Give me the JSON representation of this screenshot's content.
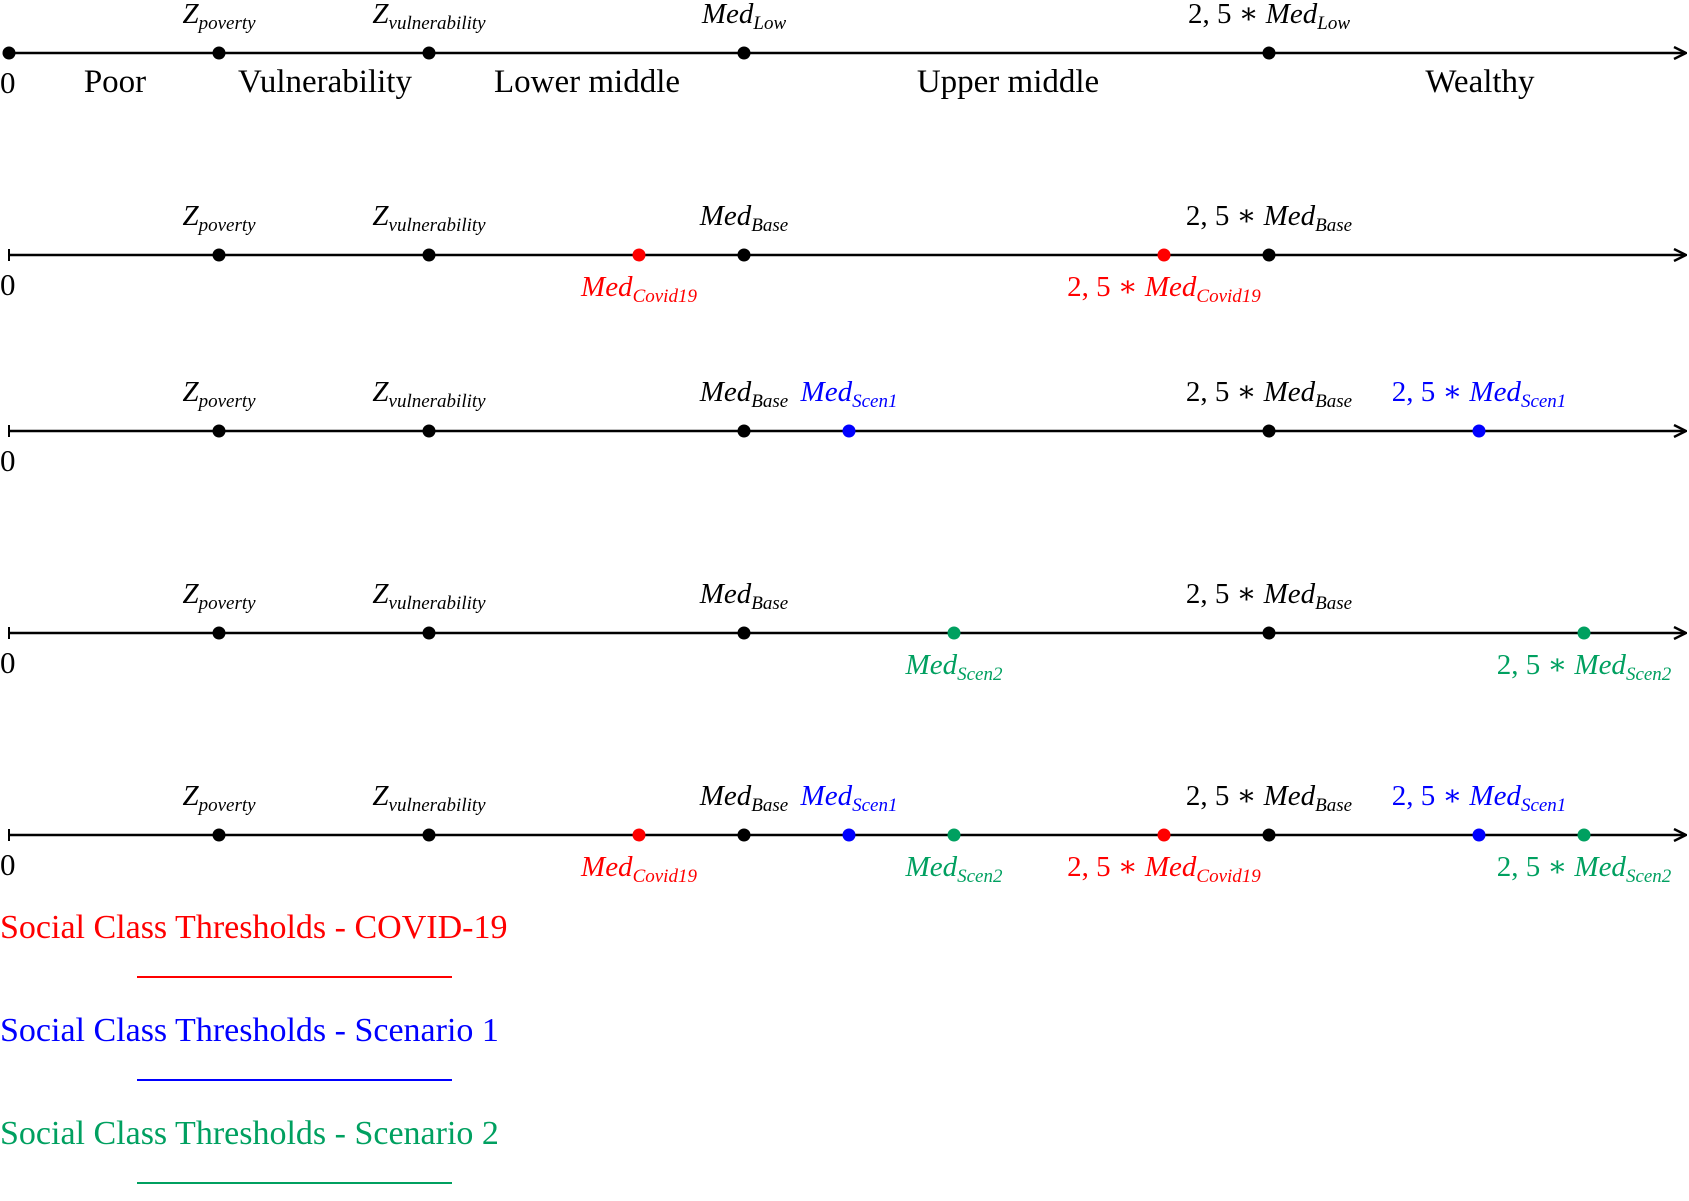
{
  "colors": {
    "axis": "#000000",
    "base": "#000000",
    "covid": "#ff0000",
    "scen1": "#0000ff",
    "scen2": "#00a060"
  },
  "axes": [
    {
      "zero_label": "0",
      "classes": [
        "Poor",
        "Vulnerability",
        "Lower middle",
        "Upper middle",
        "Wealthy"
      ],
      "points": [
        {
          "pos": 0,
          "color": "base",
          "label": null
        },
        {
          "pos": 1,
          "color": "base",
          "label": {
            "main": "Z",
            "sub": "poverty",
            "above": true
          }
        },
        {
          "pos": 2,
          "color": "base",
          "label": {
            "main": "Z",
            "sub": "vulnerability",
            "above": true
          }
        },
        {
          "pos": 3.5,
          "color": "base",
          "label": {
            "main": "Med",
            "sub": "Low",
            "above": true
          }
        },
        {
          "pos": 6,
          "color": "base",
          "label": {
            "prefix": "2, 5 * ",
            "main": "Med",
            "sub": "Low",
            "above": true
          }
        }
      ]
    },
    {
      "zero_label": "0",
      "points": [
        {
          "pos": 1,
          "color": "base",
          "label": {
            "main": "Z",
            "sub": "poverty",
            "above": true
          }
        },
        {
          "pos": 2,
          "color": "base",
          "label": {
            "main": "Z",
            "sub": "vulnerability",
            "above": true
          }
        },
        {
          "pos": 3,
          "color": "covid",
          "label": {
            "main": "Med",
            "sub": "Covid19",
            "above": false
          }
        },
        {
          "pos": 3.5,
          "color": "base",
          "label": {
            "main": "Med",
            "sub": "Base",
            "above": true
          }
        },
        {
          "pos": 5.5,
          "color": "covid",
          "label": {
            "prefix": "2, 5 * ",
            "main": "Med",
            "sub": "Covid19",
            "above": false
          }
        },
        {
          "pos": 6,
          "color": "base",
          "label": {
            "prefix": "2, 5 * ",
            "main": "Med",
            "sub": "Base",
            "above": true
          }
        }
      ]
    },
    {
      "zero_label": "0",
      "points": [
        {
          "pos": 1,
          "color": "base",
          "label": {
            "main": "Z",
            "sub": "poverty",
            "above": true
          }
        },
        {
          "pos": 2,
          "color": "base",
          "label": {
            "main": "Z",
            "sub": "vulnerability",
            "above": true
          }
        },
        {
          "pos": 3.5,
          "color": "base",
          "label": {
            "main": "Med",
            "sub": "Base",
            "above": true
          }
        },
        {
          "pos": 4,
          "color": "scen1",
          "label": {
            "main": "Med",
            "sub": "Scen1",
            "above": true
          }
        },
        {
          "pos": 6,
          "color": "base",
          "label": {
            "prefix": "2, 5 * ",
            "main": "Med",
            "sub": "Base",
            "above": true
          }
        },
        {
          "pos": 7,
          "color": "scen1",
          "label": {
            "prefix": "2, 5 * ",
            "main": "Med",
            "sub": "Scen1",
            "above": true
          }
        }
      ]
    },
    {
      "zero_label": "0",
      "points": [
        {
          "pos": 1,
          "color": "base",
          "label": {
            "main": "Z",
            "sub": "poverty",
            "above": true
          }
        },
        {
          "pos": 2,
          "color": "base",
          "label": {
            "main": "Z",
            "sub": "vulnerability",
            "above": true
          }
        },
        {
          "pos": 3.5,
          "color": "base",
          "label": {
            "main": "Med",
            "sub": "Base",
            "above": true
          }
        },
        {
          "pos": 4.5,
          "color": "scen2",
          "label": {
            "main": "Med",
            "sub": "Scen2",
            "above": false
          }
        },
        {
          "pos": 6,
          "color": "base",
          "label": {
            "prefix": "2, 5 * ",
            "main": "Med",
            "sub": "Base",
            "above": true
          }
        },
        {
          "pos": 7.5,
          "color": "scen2",
          "label": {
            "prefix": "2, 5 * ",
            "main": "Med",
            "sub": "Scen2",
            "above": false
          }
        }
      ]
    },
    {
      "zero_label": "0",
      "points": [
        {
          "pos": 1,
          "color": "base",
          "label": {
            "main": "Z",
            "sub": "poverty",
            "above": true
          }
        },
        {
          "pos": 2,
          "color": "base",
          "label": {
            "main": "Z",
            "sub": "vulnerability",
            "above": true
          }
        },
        {
          "pos": 3,
          "color": "covid",
          "label": {
            "main": "Med",
            "sub": "Covid19",
            "above": false
          }
        },
        {
          "pos": 3.5,
          "color": "base",
          "label": {
            "main": "Med",
            "sub": "Base",
            "above": true
          }
        },
        {
          "pos": 4,
          "color": "scen1",
          "label": {
            "main": "Med",
            "sub": "Scen1",
            "above": true
          }
        },
        {
          "pos": 4.5,
          "color": "scen2",
          "label": {
            "main": "Med",
            "sub": "Scen2",
            "above": false
          }
        },
        {
          "pos": 5.5,
          "color": "covid",
          "label": {
            "prefix": "2, 5 * ",
            "main": "Med",
            "sub": "Covid19",
            "above": false
          }
        },
        {
          "pos": 6,
          "color": "base",
          "label": {
            "prefix": "2, 5 * ",
            "main": "Med",
            "sub": "Base",
            "above": true
          }
        },
        {
          "pos": 7,
          "color": "scen1",
          "label": {
            "prefix": "2, 5 * ",
            "main": "Med",
            "sub": "Scen1",
            "above": true
          }
        },
        {
          "pos": 7.5,
          "color": "scen2",
          "label": {
            "prefix": "2, 5 * ",
            "main": "Med",
            "sub": "Scen2",
            "above": false
          }
        }
      ]
    }
  ],
  "legend": [
    {
      "text": "Social Class Thresholds - COVID-19",
      "color": "covid"
    },
    {
      "text": "Social Class Thresholds - Scenario 1",
      "color": "scen1"
    },
    {
      "text": "Social Class Thresholds - Scenario 2",
      "color": "scen2"
    }
  ]
}
